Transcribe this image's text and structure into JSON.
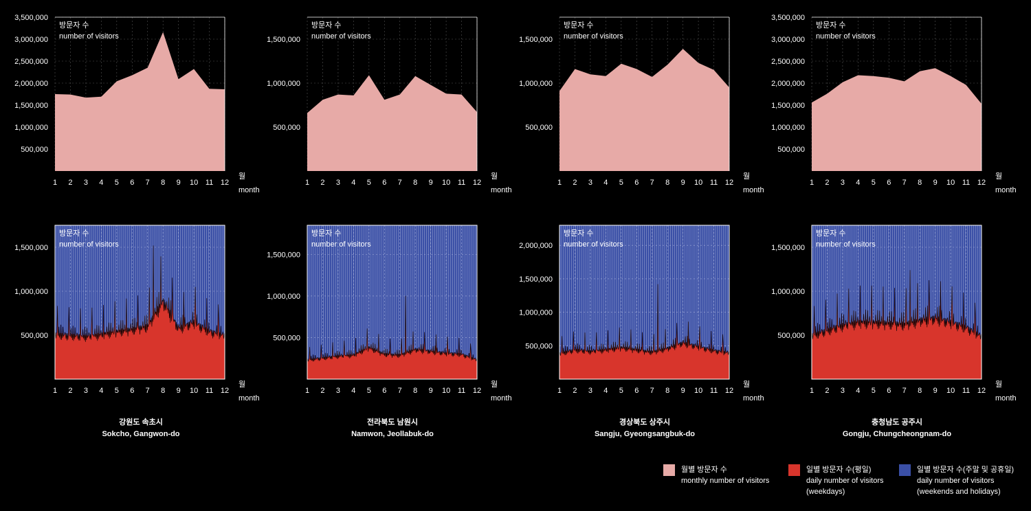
{
  "panel_label": {
    "ko": "방문자 수",
    "en": "number of visitors"
  },
  "month_axis": {
    "ko": "월",
    "en": "month"
  },
  "colors": {
    "monthly": "#e7aaa7",
    "weekday": "#d8352c",
    "weekend": "#3a4fa6"
  },
  "regions": [
    {
      "ko": "강원도 속초시",
      "en": "Sokcho, Gangwon-do"
    },
    {
      "ko": "전라북도 남원시",
      "en": "Namwon, Jeollabuk-do"
    },
    {
      "ko": "경상북도 상주시",
      "en": "Sangju, Gyeongsangbuk-do"
    },
    {
      "ko": "충청남도 공주시",
      "en": "Gongju, Chungcheongnam-do"
    }
  ],
  "legend": [
    {
      "key": "monthly",
      "ko": "월별 방문자 수",
      "en": "monthly number of visitors"
    },
    {
      "key": "weekday",
      "ko": "일별 방문자 수(평일)",
      "en": "daily number of visitors",
      "en2": "(weekdays)"
    },
    {
      "key": "weekend",
      "ko": "일별 방문자 수(주말 및 공휴일)",
      "en": "daily number of visitors",
      "en2": "(weekends and holidays)"
    }
  ],
  "chart_data": [
    {
      "type": "area",
      "region": "Sokcho, Gangwon-do",
      "series": "monthly",
      "x": [
        1,
        2,
        3,
        4,
        5,
        6,
        7,
        8,
        9,
        10,
        11,
        12
      ],
      "values": [
        1750000,
        1740000,
        1670000,
        1690000,
        2040000,
        2180000,
        2350000,
        3160000,
        2090000,
        2320000,
        1870000,
        1860000
      ],
      "ylim": [
        0,
        3500000
      ],
      "yticks": [
        "500,000",
        "1,000,000",
        "1,500,000",
        "2,000,000",
        "2,500,000",
        "3,000,000",
        "3,500,000"
      ]
    },
    {
      "type": "area",
      "region": "Namwon, Jeollabuk-do",
      "series": "monthly",
      "x": [
        1,
        2,
        3,
        4,
        5,
        6,
        7,
        8,
        9,
        10,
        11,
        12
      ],
      "values": [
        660000,
        810000,
        870000,
        860000,
        1090000,
        810000,
        870000,
        1080000,
        980000,
        880000,
        870000,
        670000
      ],
      "ylim": [
        0,
        1750000
      ],
      "yticks": [
        "500,000",
        "1,000,000",
        "1,500,000"
      ]
    },
    {
      "type": "area",
      "region": "Sangju, Gyeongsangbuk-do",
      "series": "monthly",
      "x": [
        1,
        2,
        3,
        4,
        5,
        6,
        7,
        8,
        9,
        10,
        11,
        12
      ],
      "values": [
        910000,
        1160000,
        1100000,
        1080000,
        1220000,
        1160000,
        1070000,
        1210000,
        1390000,
        1230000,
        1150000,
        950000
      ],
      "ylim": [
        0,
        1750000
      ],
      "yticks": [
        "500,000",
        "1,000,000",
        "1,500,000"
      ]
    },
    {
      "type": "area",
      "region": "Gongju, Chungcheongnam-do",
      "series": "monthly",
      "x": [
        1,
        2,
        3,
        4,
        5,
        6,
        7,
        8,
        9,
        10,
        11,
        12
      ],
      "values": [
        1560000,
        1760000,
        2020000,
        2180000,
        2160000,
        2120000,
        2040000,
        2270000,
        2340000,
        2160000,
        1960000,
        1530000
      ],
      "ylim": [
        0,
        3500000
      ],
      "yticks": [
        "500,000",
        "1,000,000",
        "1,500,000",
        "2,000,000",
        "2,500,000",
        "3,000,000",
        "3,500,000"
      ]
    },
    {
      "type": "bar",
      "region": "Sokcho, Gangwon-do",
      "series": [
        "weekdays",
        "weekends and holidays"
      ],
      "x": [
        1,
        2,
        3,
        4,
        5,
        6,
        7,
        8,
        9,
        10,
        11,
        12
      ],
      "weekday_monthly_level": [
        440000,
        430000,
        420000,
        440000,
        470000,
        490000,
        520000,
        770000,
        500000,
        560000,
        470000,
        430000
      ],
      "weekday_peak": 1520000,
      "ylim": [
        0,
        1750000
      ],
      "yticks": [
        "500,000",
        "1,000,000",
        "1,500,000"
      ]
    },
    {
      "type": "bar",
      "region": "Namwon, Jeollabuk-do",
      "series": [
        "weekdays",
        "weekends and holidays"
      ],
      "x": [
        1,
        2,
        3,
        4,
        5,
        6,
        7,
        8,
        9,
        10,
        11,
        12
      ],
      "weekday_monthly_level": [
        200000,
        220000,
        240000,
        250000,
        330000,
        260000,
        250000,
        310000,
        290000,
        270000,
        260000,
        200000
      ],
      "weekday_peak": 1000000,
      "ylim": [
        0,
        1850000
      ],
      "yticks": [
        "500,000",
        "1,000,000",
        "1,500,000"
      ]
    },
    {
      "type": "bar",
      "region": "Sangju, Gyeongsangbuk-do",
      "series": [
        "weekdays",
        "weekends and holidays"
      ],
      "x": [
        1,
        2,
        3,
        4,
        5,
        6,
        7,
        8,
        9,
        10,
        11,
        12
      ],
      "weekday_monthly_level": [
        330000,
        380000,
        360000,
        380000,
        410000,
        380000,
        350000,
        400000,
        470000,
        420000,
        370000,
        340000
      ],
      "weekday_peak": 1420000,
      "ylim": [
        0,
        2300000
      ],
      "yticks": [
        "500,000",
        "1,000,000",
        "1,500,000",
        "2,000,000"
      ]
    },
    {
      "type": "bar",
      "region": "Gongju, Chungcheongnam-do",
      "series": [
        "weekdays",
        "weekends and holidays"
      ],
      "x": [
        1,
        2,
        3,
        4,
        5,
        6,
        7,
        8,
        9,
        10,
        11,
        12
      ],
      "weekday_monthly_level": [
        430000,
        480000,
        530000,
        560000,
        560000,
        550000,
        540000,
        580000,
        600000,
        560000,
        510000,
        420000
      ],
      "weekday_peak": 1240000,
      "ylim": [
        0,
        1750000
      ],
      "yticks": [
        "500,000",
        "1,000,000",
        "1,500,000"
      ]
    }
  ]
}
